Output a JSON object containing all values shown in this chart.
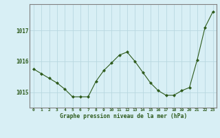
{
  "x": [
    0,
    1,
    2,
    3,
    4,
    5,
    6,
    7,
    8,
    9,
    10,
    11,
    12,
    13,
    14,
    15,
    16,
    17,
    18,
    19,
    20,
    21,
    22,
    23
  ],
  "y": [
    1015.75,
    1015.6,
    1015.45,
    1015.3,
    1015.1,
    1014.85,
    1014.85,
    1014.85,
    1015.35,
    1015.7,
    1015.95,
    1016.2,
    1016.3,
    1016.0,
    1015.65,
    1015.3,
    1015.05,
    1014.9,
    1014.9,
    1015.05,
    1015.15,
    1016.05,
    1017.1,
    1017.6
  ],
  "line_color": "#2d5a1b",
  "marker": "D",
  "marker_size": 2,
  "background_color": "#d8eff5",
  "grid_color": "#b8d8e0",
  "axis_color": "#808080",
  "xlabel": "Graphe pression niveau de la mer (hPa)",
  "xlabel_color": "#2d5a1b",
  "tick_color": "#2d5a1b",
  "yticks": [
    1015,
    1016,
    1017
  ],
  "ylim": [
    1014.5,
    1017.85
  ],
  "xlim": [
    -0.5,
    23.5
  ],
  "xtick_labels": [
    "0",
    "1",
    "2",
    "3",
    "4",
    "5",
    "6",
    "7",
    "8",
    "9",
    "10",
    "11",
    "12",
    "13",
    "14",
    "15",
    "16",
    "17",
    "18",
    "19",
    "20",
    "21",
    "22",
    "23"
  ]
}
